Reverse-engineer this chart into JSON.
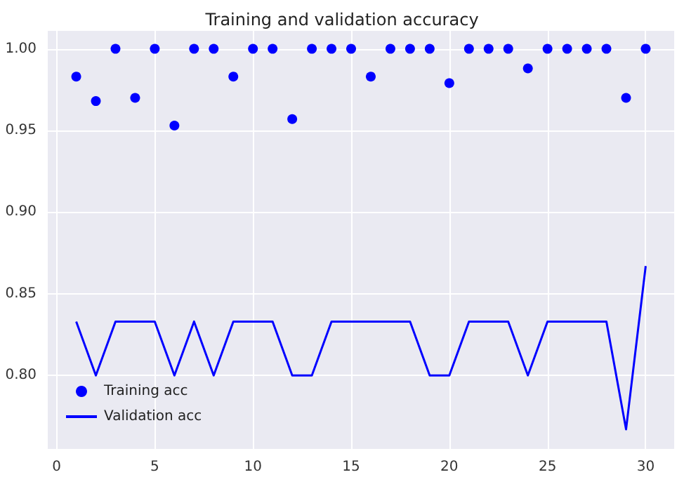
{
  "chart_data": {
    "type": "scatter",
    "title": "Training and validation accuracy",
    "x": [
      1,
      2,
      3,
      4,
      5,
      6,
      7,
      8,
      9,
      10,
      11,
      12,
      13,
      14,
      15,
      16,
      17,
      18,
      19,
      20,
      21,
      22,
      23,
      24,
      25,
      26,
      27,
      28,
      29,
      30
    ],
    "series": [
      {
        "name": "Training acc",
        "color": "#0000ff",
        "marker": "circle",
        "values": [
          0.983,
          0.968,
          1.0,
          0.97,
          1.0,
          0.953,
          1.0,
          1.0,
          0.983,
          1.0,
          1.0,
          0.957,
          1.0,
          1.0,
          1.0,
          0.983,
          1.0,
          1.0,
          1.0,
          0.979,
          1.0,
          1.0,
          1.0,
          0.988,
          1.0,
          1.0,
          1.0,
          1.0,
          0.97,
          1.0
        ]
      },
      {
        "name": "Validation acc",
        "type": "line",
        "color": "#0000ff",
        "marker": "none",
        "line_style": "solid",
        "values": [
          0.833,
          0.8,
          0.833,
          0.833,
          0.833,
          0.8,
          0.833,
          0.8,
          0.833,
          0.833,
          0.833,
          0.8,
          0.8,
          0.833,
          0.833,
          0.833,
          0.833,
          0.833,
          0.8,
          0.8,
          0.833,
          0.833,
          0.833,
          0.8,
          0.833,
          0.833,
          0.833,
          0.833,
          0.767,
          0.867
        ]
      }
    ],
    "xlim": [
      -0.45,
      31.45
    ],
    "xticks": [
      0,
      5,
      10,
      15,
      20,
      25,
      30
    ],
    "ylim": [
      0.755,
      1.011
    ],
    "yticks": [
      {
        "value": 0.8,
        "label": "0.80"
      },
      {
        "value": 0.85,
        "label": "0.85"
      },
      {
        "value": 0.9,
        "label": "0.90"
      },
      {
        "value": 0.95,
        "label": "0.95"
      },
      {
        "value": 1.0,
        "label": "1.00"
      }
    ],
    "grid": true,
    "legend": "bottom left"
  }
}
